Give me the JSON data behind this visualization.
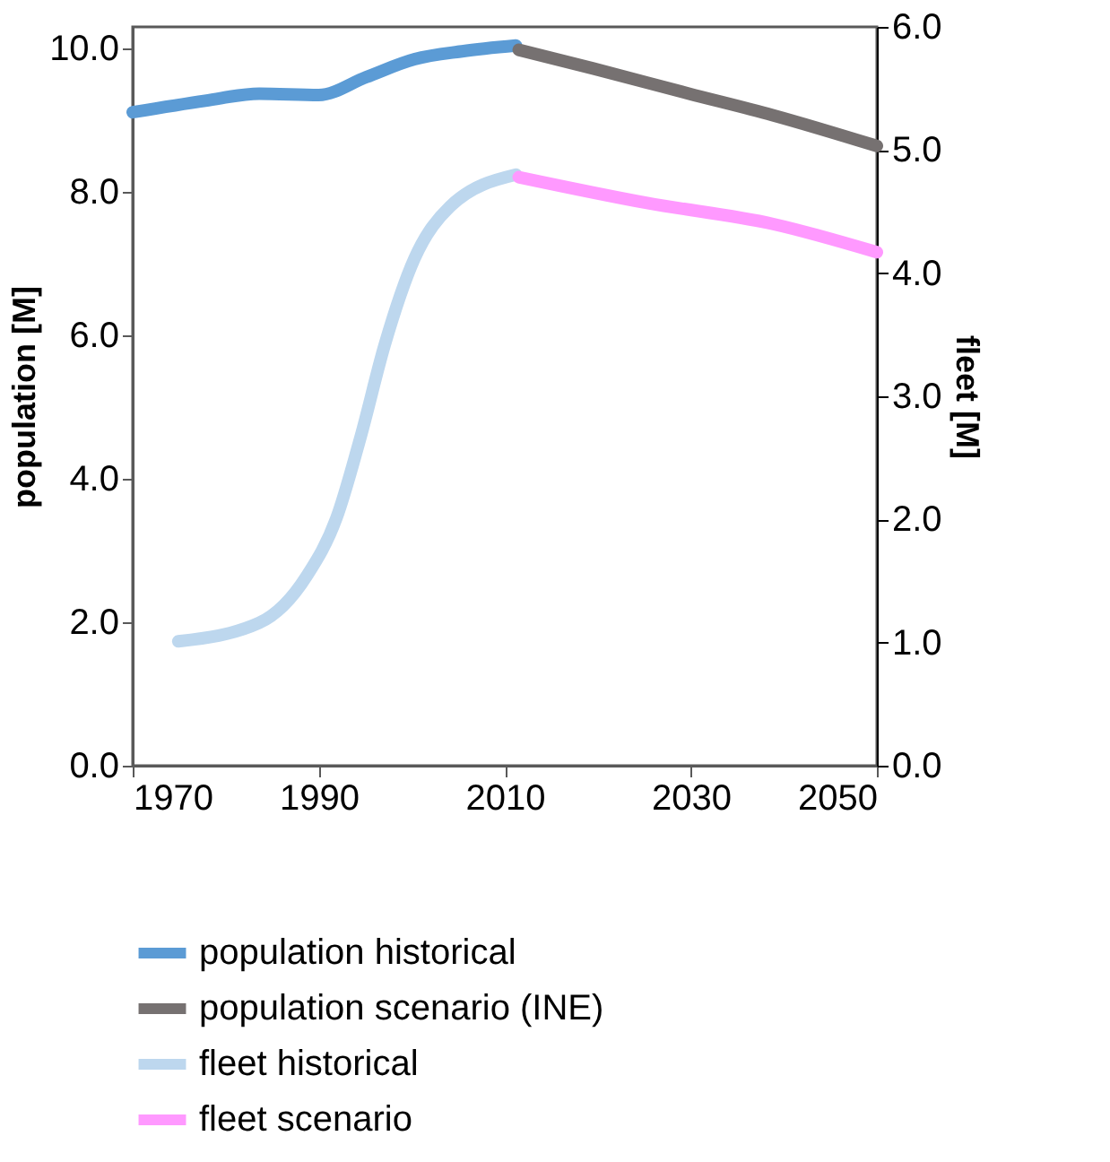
{
  "chart_data": {
    "type": "line",
    "ylabel": "population [M]",
    "y2label": "fleet [M]",
    "xlim": [
      1970,
      2050
    ],
    "xticks": [
      1970,
      1990,
      2010,
      2030,
      2050
    ],
    "ylim": [
      0,
      10.3
    ],
    "yticks": [
      {
        "value": 0,
        "label": "0.0"
      },
      {
        "value": 2,
        "label": "2.0"
      },
      {
        "value": 4,
        "label": "4.0"
      },
      {
        "value": 6,
        "label": "6.0"
      },
      {
        "value": 8,
        "label": "8.0"
      },
      {
        "value": 10,
        "label": "10.0"
      }
    ],
    "y2lim": [
      0,
      6
    ],
    "y2ticks": [
      {
        "value": 0,
        "label": "0.0"
      },
      {
        "value": 1,
        "label": "1.0"
      },
      {
        "value": 2,
        "label": "2.0"
      },
      {
        "value": 3,
        "label": "3.0"
      },
      {
        "value": 4,
        "label": "4.0"
      },
      {
        "value": 5,
        "label": "5.0"
      },
      {
        "value": 6,
        "label": "6.0"
      }
    ],
    "legend": "bottom",
    "grid": false,
    "marker": "none",
    "line_style": "solid",
    "series": [
      {
        "name": "population historical",
        "color": "#5b9bd5",
        "x": [
          1970,
          1977.8,
          1983.6,
          1990,
          1995.1,
          2000.3,
          2005.4,
          2011.2
        ],
        "values": [
          9.11,
          9.27,
          9.37,
          9.35,
          9.6,
          9.85,
          9.96,
          10.04
        ]
      },
      {
        "name": "population scenario (INE)",
        "color": "#767171",
        "x": [
          2011.5,
          2019.5,
          2029.8,
          2038.8,
          2050
        ],
        "values": [
          9.98,
          9.72,
          9.37,
          9.07,
          8.64
        ]
      },
      {
        "name": "fleet historical",
        "color": "#bdd7ee",
        "axis": "y2",
        "x": [
          1974.9,
          1983.6,
          1988.7,
          1991.9,
          1994.5,
          1997.1,
          2000.3,
          2004.1,
          2011.2
        ],
        "values": [
          1.01,
          1.16,
          1.54,
          2.01,
          2.67,
          3.42,
          4.12,
          4.54,
          4.8
        ]
      },
      {
        "name": "fleet scenario",
        "color": "#ff99ff",
        "axis": "y2",
        "x": [
          2011.5,
          2025.3,
          2038.8,
          2050
        ],
        "values": [
          4.78,
          4.57,
          4.4,
          4.17
        ]
      }
    ]
  }
}
